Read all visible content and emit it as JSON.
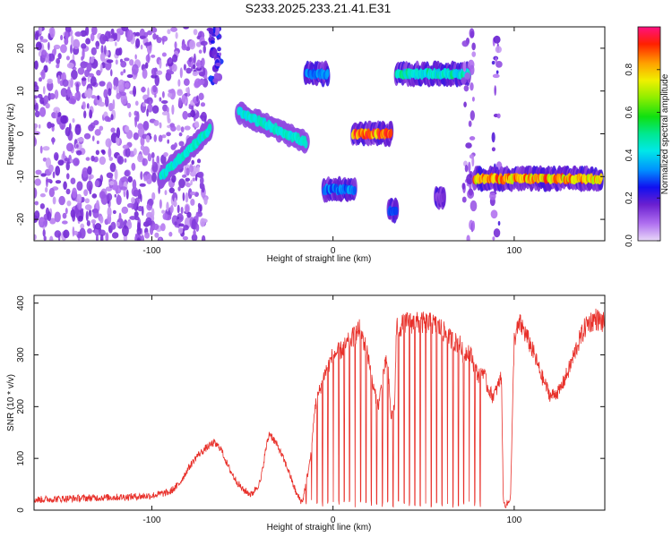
{
  "title": "S233.2025.233.21.41.E31",
  "colors": {
    "line": "#e8302a",
    "axis": "#111111",
    "background": "#ffffff"
  },
  "colorbar": {
    "label": "Normalized spectral amplitude",
    "range": [
      0,
      1
    ],
    "tick_labels": [
      "0.0",
      "0.2",
      "0.4",
      "0.6",
      "0.8"
    ]
  },
  "chart_data": [
    {
      "type": "heatmap",
      "xlabel": "Height of straight line (km)",
      "ylabel": "Frequency (Hz)",
      "xlim": [
        -165,
        150
      ],
      "ylim": [
        -25,
        25
      ],
      "x_tick_labels": [
        "-100",
        "0",
        "100"
      ],
      "y_tick_labels": [
        "-20",
        "-10",
        "0",
        "10",
        "20"
      ],
      "features": [
        {
          "name": "noise band low heights",
          "x_range": [
            -165,
            -70
          ],
          "frequency_range": [
            -25,
            25
          ],
          "amplitude": 0.12
        },
        {
          "name": "rising trace",
          "x_range": [
            -95,
            -68
          ],
          "frequency_start": -10,
          "frequency_end": 1,
          "amplitude": 0.35
        },
        {
          "name": "high band",
          "x_range": [
            -68,
            -62
          ],
          "frequency_range": [
            12,
            25
          ],
          "amplitude": 0.2
        },
        {
          "name": "descending trace",
          "x_range": [
            -52,
            -15
          ],
          "frequency_start": 5,
          "frequency_end": -2,
          "amplitude": 0.35
        },
        {
          "name": "blob",
          "x_range": [
            -15,
            -3
          ],
          "frequency_center": 14,
          "amplitude": 0.35
        },
        {
          "name": "blob",
          "x_range": [
            -5,
            12
          ],
          "frequency_center": -13,
          "amplitude": 0.35
        },
        {
          "name": "hot line",
          "x_range": [
            11,
            32
          ],
          "frequency_center": 0,
          "amplitude": 0.95
        },
        {
          "name": "band",
          "x_range": [
            35,
            75
          ],
          "frequency_center": 14,
          "amplitude": 0.5
        },
        {
          "name": "blob",
          "x_range": [
            31,
            35
          ],
          "frequency_center": -18,
          "amplitude": 0.3
        },
        {
          "name": "blob",
          "x_range": [
            57,
            61
          ],
          "frequency_center": -15,
          "amplitude": 0.15
        },
        {
          "name": "vertical streak",
          "x_range": [
            72,
            78
          ],
          "frequency_range": [
            -25,
            25
          ],
          "amplitude": 0.12
        },
        {
          "name": "dotted streak",
          "x_range": [
            88,
            92
          ],
          "frequency_range": [
            -25,
            25
          ],
          "amplitude": 0.15
        },
        {
          "name": "hot line",
          "x_range": [
            78,
            148
          ],
          "frequency_center": -10.5,
          "amplitude": 0.9
        }
      ]
    },
    {
      "type": "line",
      "xlabel": "Height of straight line (km)",
      "ylabel": "SNR (10 * v/v)",
      "xlim": [
        -165,
        150
      ],
      "ylim": [
        0,
        415
      ],
      "x_tick_labels": [
        "-100",
        "0",
        "100"
      ],
      "y_tick_labels": [
        "0",
        "100",
        "200",
        "300",
        "400"
      ],
      "series": [
        {
          "name": "SNR",
          "x": [
            -165,
            -150,
            -130,
            -110,
            -100,
            -90,
            -85,
            -80,
            -75,
            -70,
            -66,
            -62,
            -58,
            -54,
            -50,
            -45,
            -40,
            -37,
            -35,
            -30,
            -25,
            -20,
            -17,
            -15,
            -12,
            -10,
            -5,
            0,
            5,
            10,
            15,
            20,
            22,
            25,
            28,
            30,
            32,
            34,
            35,
            40,
            45,
            50,
            55,
            60,
            62,
            65,
            70,
            72,
            75,
            78,
            80,
            83,
            85,
            88,
            90,
            93,
            94,
            95,
            97,
            98,
            100,
            103,
            105,
            110,
            115,
            120,
            125,
            130,
            135,
            140,
            145,
            150
          ],
          "y": [
            20,
            22,
            24,
            26,
            28,
            35,
            50,
            80,
            105,
            120,
            130,
            120,
            85,
            60,
            40,
            30,
            55,
            120,
            150,
            120,
            80,
            30,
            15,
            50,
            110,
            200,
            260,
            300,
            310,
            330,
            350,
            290,
            240,
            200,
            270,
            290,
            180,
            200,
            350,
            362,
            362,
            362,
            360,
            350,
            340,
            330,
            320,
            300,
            310,
            280,
            260,
            270,
            240,
            220,
            230,
            260,
            15,
            10,
            15,
            30,
            330,
            360,
            350,
            310,
            260,
            220,
            230,
            270,
            320,
            360,
            370,
            360
          ],
          "oscillating_dips": {
            "x_range": [
              -15,
              82
            ],
            "spacing_km": 3,
            "min_value": 5
          }
        }
      ]
    }
  ]
}
